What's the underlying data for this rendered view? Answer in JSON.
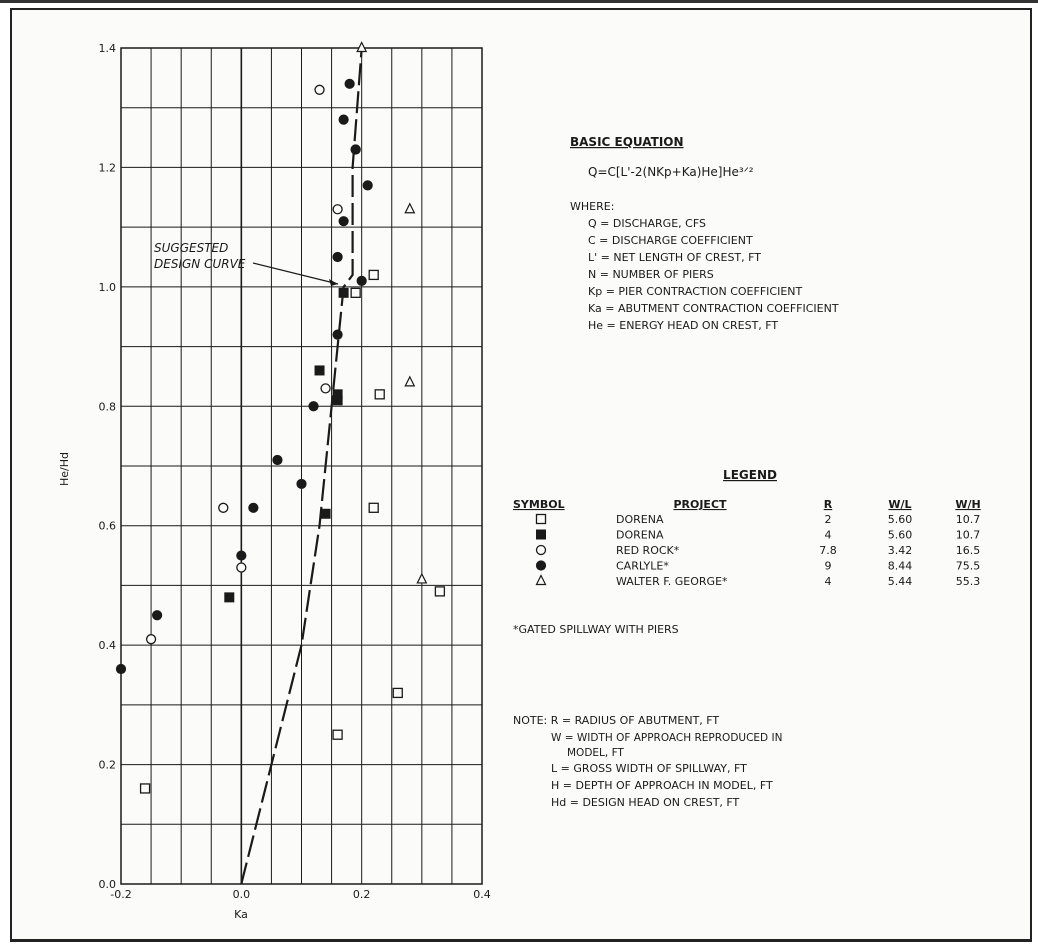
{
  "chart_data": {
    "type": "scatter",
    "xlabel": "Ka",
    "ylabel": "He/Hd",
    "xlim": [
      -0.2,
      0.4
    ],
    "ylim": [
      0.0,
      1.4
    ],
    "x_ticks": [
      "-0.2",
      "0.0",
      "0.2",
      "0.4"
    ],
    "y_ticks": [
      "0.0",
      "0.2",
      "0.4",
      "0.6",
      "0.8",
      "1.0",
      "1.2",
      "1.4"
    ],
    "grid": true,
    "annotation": "SUGGESTED DESIGN CURVE",
    "design_curve": {
      "style": "dashed",
      "x": [
        0.0,
        0.05,
        0.1,
        0.13,
        0.15,
        0.17,
        0.185,
        0.185,
        0.2
      ],
      "y": [
        0.0,
        0.2,
        0.4,
        0.6,
        0.8,
        1.0,
        1.02,
        1.2,
        1.4
      ]
    },
    "series": [
      {
        "project": "DORENA",
        "symbol": "open-square",
        "R": "2",
        "WL": "5.60",
        "WH": "10.7",
        "x": [
          -0.16,
          0.16,
          0.26,
          0.22,
          0.23,
          0.33,
          0.19,
          0.22
        ],
        "y": [
          0.16,
          0.25,
          0.32,
          0.63,
          0.82,
          0.49,
          0.99,
          1.02
        ]
      },
      {
        "project": "DORENA",
        "symbol": "filled-square",
        "R": "4",
        "WL": "5.60",
        "WH": "10.7",
        "x": [
          -0.02,
          0.14,
          0.16,
          0.16,
          0.13,
          0.17
        ],
        "y": [
          0.48,
          0.62,
          0.81,
          0.82,
          0.86,
          0.99
        ]
      },
      {
        "project": "RED ROCK*",
        "symbol": "open-circle",
        "R": "7.8",
        "WL": "3.42",
        "WH": "16.5",
        "x": [
          -0.15,
          0.0,
          -0.03,
          0.14,
          0.16,
          0.13
        ],
        "y": [
          0.41,
          0.53,
          0.63,
          0.83,
          1.13,
          1.33
        ]
      },
      {
        "project": "CARLYLE*",
        "symbol": "filled-circle",
        "R": "9",
        "WL": "8.44",
        "WH": "75.5",
        "x": [
          -0.2,
          -0.14,
          0.0,
          0.02,
          0.06,
          0.1,
          0.12,
          0.16,
          0.16,
          0.17,
          0.2,
          0.21,
          0.19,
          0.18,
          0.17,
          0.19
        ],
        "y": [
          0.36,
          0.45,
          0.55,
          0.63,
          0.71,
          0.67,
          0.8,
          0.92,
          1.05,
          1.11,
          1.01,
          1.17,
          1.23,
          1.34,
          1.28,
          1.23
        ]
      },
      {
        "project": "WALTER F. GEORGE*",
        "symbol": "open-triangle",
        "R": "4",
        "WL": "5.44",
        "WH": "55.3",
        "x": [
          0.3,
          0.28,
          0.28,
          0.2
        ],
        "y": [
          0.51,
          0.84,
          1.13,
          1.4
        ]
      }
    ]
  },
  "equation": {
    "title": "BASIC EQUATION",
    "formula": "Q=C[L'-2(NKp+Ka)He]He³ᐟ²",
    "where": "WHERE:",
    "defs": [
      "Q  = DISCHARGE, CFS",
      "C  = DISCHARGE COEFFICIENT",
      "L'  = NET LENGTH OF CREST, FT",
      "N  = NUMBER OF PIERS",
      "Kp = PIER CONTRACTION COEFFICIENT",
      "Ka = ABUTMENT CONTRACTION COEFFICIENT",
      "He = ENERGY HEAD ON CREST, FT"
    ]
  },
  "legend": {
    "title": "LEGEND",
    "headers": [
      "SYMBOL",
      "PROJECT",
      "R",
      "W/L",
      "W/H"
    ],
    "footnote": "*GATED SPILLWAY WITH PIERS"
  },
  "notes": {
    "lines": [
      "NOTE: R  = RADIUS OF ABUTMENT, FT",
      "W = WIDTH OF APPROACH REPRODUCED IN",
      "MODEL, FT",
      "L  = GROSS WIDTH OF SPILLWAY, FT",
      "H  = DEPTH OF APPROACH IN MODEL, FT",
      "Hd = DESIGN HEAD ON CREST, FT"
    ]
  },
  "colors": {
    "ink": "#1a1a1a",
    "paper": "#fbfbfa"
  }
}
